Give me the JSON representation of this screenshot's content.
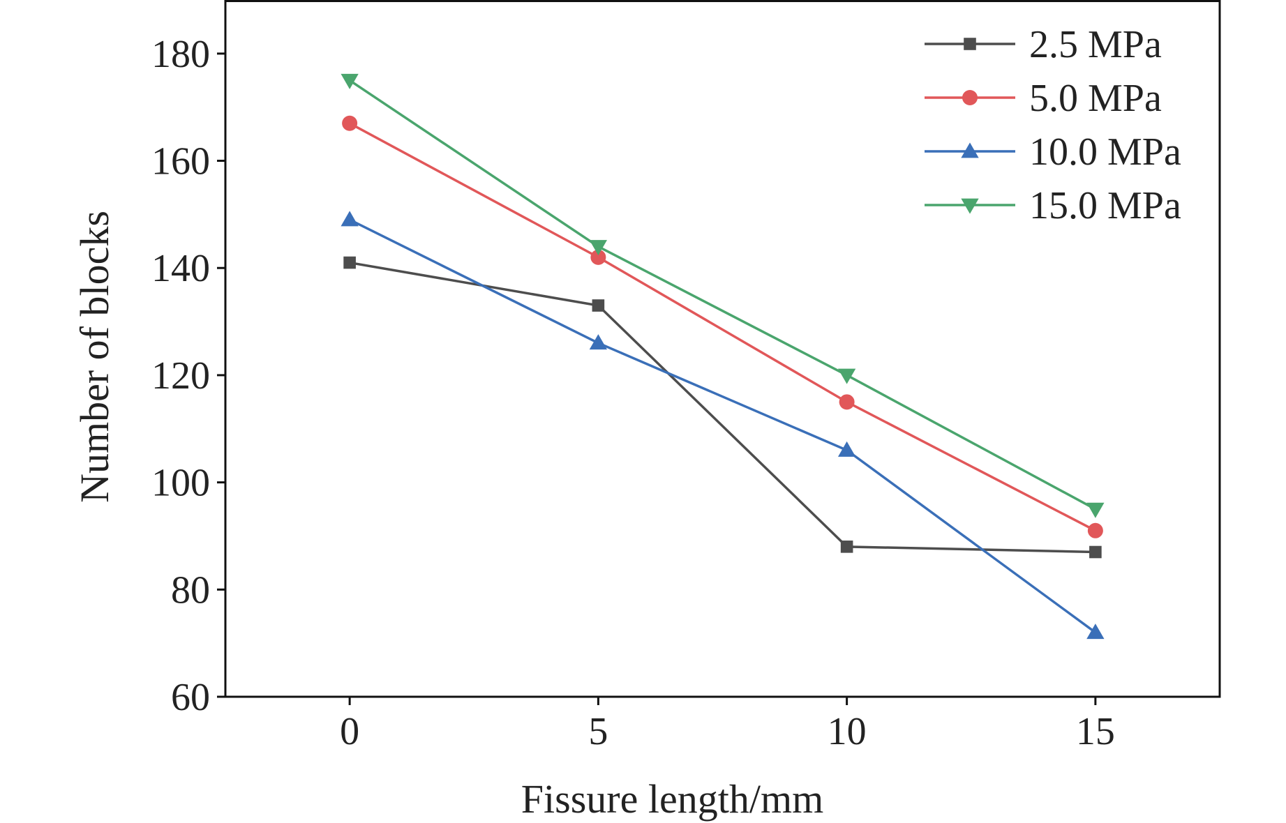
{
  "chart_data": {
    "type": "line",
    "title": "",
    "xlabel": "Fissure length/mm",
    "ylabel": "Number of blocks",
    "x": [
      0,
      5,
      10,
      15
    ],
    "xlim": [
      -2.5,
      17.5
    ],
    "ylim": [
      60,
      190
    ],
    "xticks": [
      0,
      5,
      10,
      15
    ],
    "yticks": [
      60,
      80,
      100,
      120,
      140,
      160,
      180
    ],
    "grid": false,
    "legend_position": "top-right",
    "series": [
      {
        "name": "2.5 MPa",
        "marker": "square",
        "color": "#4d4d4d",
        "values": [
          141,
          133,
          88,
          87
        ]
      },
      {
        "name": "5.0 MPa",
        "marker": "circle",
        "color": "#e15759",
        "values": [
          167,
          142,
          115,
          91
        ]
      },
      {
        "name": "10.0 MPa",
        "marker": "triangle-up",
        "color": "#3a6fb8",
        "values": [
          149,
          126,
          106,
          72
        ]
      },
      {
        "name": "15.0 MPa",
        "marker": "triangle-down",
        "color": "#4aa56d",
        "values": [
          175,
          144,
          120,
          95
        ]
      }
    ]
  }
}
